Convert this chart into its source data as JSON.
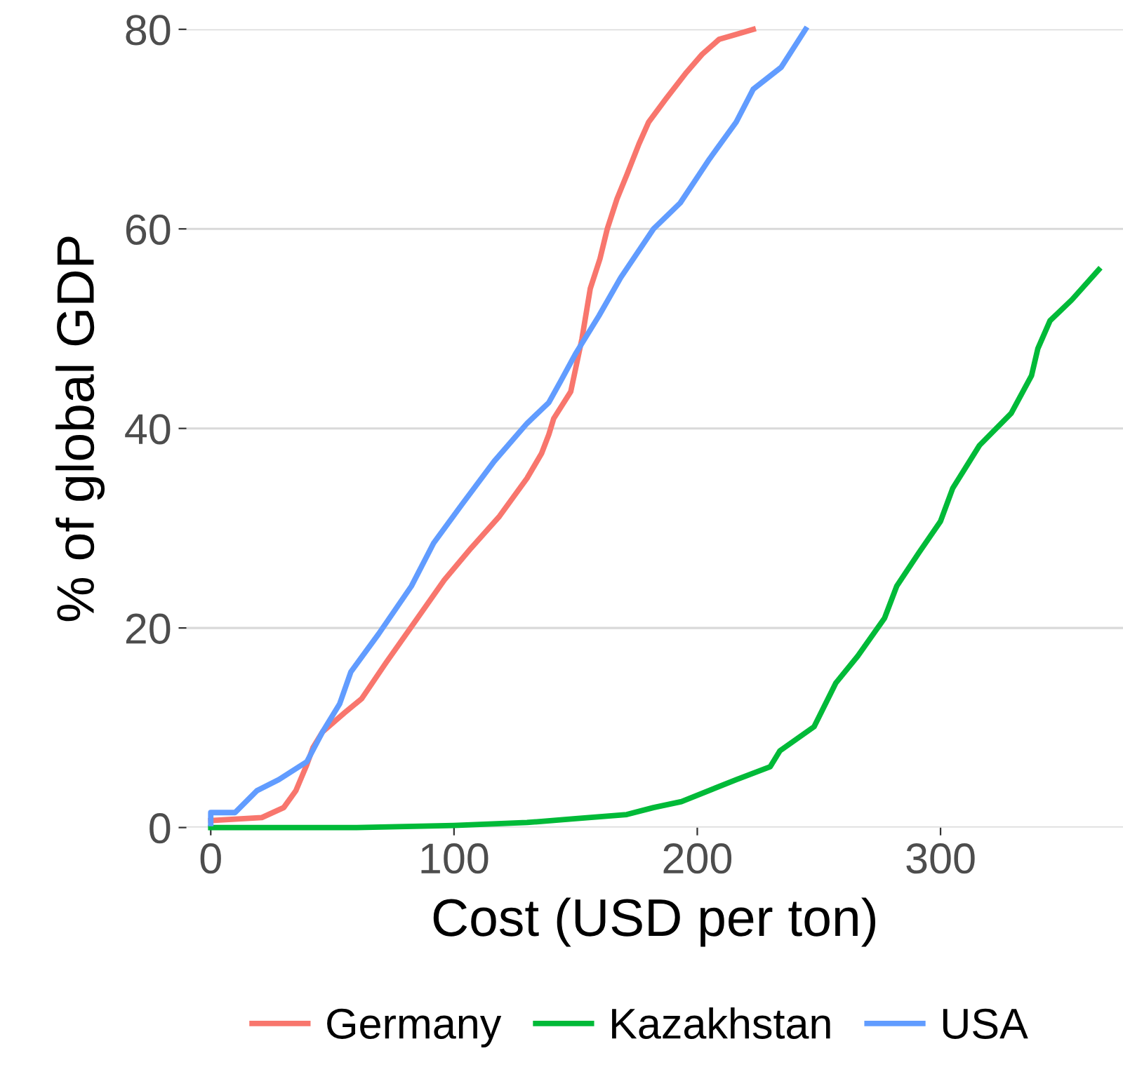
{
  "chart_data": {
    "type": "line",
    "xlabel": "Cost (USD per ton)",
    "ylabel": "% of global GDP",
    "xlim": [
      -10,
      375
    ],
    "ylim": [
      0,
      80
    ],
    "xticks": [
      0,
      100,
      200,
      300
    ],
    "yticks": [
      0,
      20,
      40,
      60,
      80
    ],
    "grid": "y",
    "legend": "bottom",
    "series": [
      {
        "name": "Germany",
        "color": "#f8766d",
        "x": [
          0,
          21,
          30,
          35,
          39.5,
          42,
          46,
          55,
          62,
          72,
          85,
          96,
          107,
          118.7,
          130,
          136,
          139,
          141,
          148,
          152.6,
          156,
          160,
          163,
          167,
          171,
          176,
          180,
          187,
          195.6,
          202,
          209,
          216,
          223
        ],
        "values": [
          0.7,
          1.0,
          2,
          3.7,
          6.3,
          8,
          9.6,
          11.5,
          12.9,
          16.5,
          21,
          24.8,
          28,
          31.2,
          35,
          37.5,
          39.4,
          41,
          43.7,
          49,
          54,
          57,
          60,
          63,
          65.4,
          68.5,
          70.7,
          73,
          75.7,
          77.5,
          79,
          79.5,
          80
        ]
      },
      {
        "name": "Kazakhstan",
        "color": "#00ba38",
        "x": [
          0,
          60,
          100,
          130,
          150,
          171,
          182,
          193.5,
          216,
          230,
          234,
          248,
          257,
          266,
          277,
          282,
          291,
          300,
          305,
          316,
          329,
          337.4,
          340,
          345,
          354,
          365
        ],
        "values": [
          0,
          0,
          0.2,
          0.5,
          0.9,
          1.3,
          2,
          2.6,
          4.8,
          6.1,
          7.7,
          10.1,
          14.5,
          17.2,
          21,
          24.2,
          27.5,
          30.7,
          34,
          38.3,
          41.5,
          45.3,
          48,
          50.8,
          52.9,
          55.9
        ]
      },
      {
        "name": "USA",
        "color": "#619cff",
        "x": [
          0,
          0,
          10,
          19,
          28,
          39.5,
          46,
          53,
          57.6,
          69,
          82.5,
          91.6,
          103,
          116.5,
          130,
          139,
          144,
          150,
          159.6,
          168.5,
          182,
          193,
          205,
          216,
          223,
          234.5,
          244.5
        ],
        "values": [
          0.4,
          1.5,
          1.5,
          3.7,
          4.8,
          6.6,
          9.6,
          12.4,
          15.6,
          19.4,
          24.2,
          28.5,
          32.3,
          36.7,
          40.5,
          42.6,
          44.8,
          47.5,
          51.3,
          55.1,
          60,
          62.6,
          67,
          70.7,
          74,
          76.2,
          80
        ]
      }
    ]
  }
}
